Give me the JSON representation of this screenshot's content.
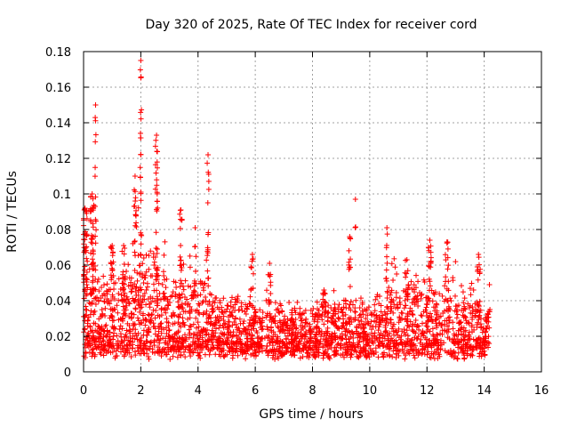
{
  "chart_data": {
    "type": "scatter",
    "title": "Day 320 of 2025, Rate Of TEC Index for receiver cord",
    "xlabel": "GPS time / hours",
    "ylabel": "ROTI / TECUs",
    "xlim": [
      0,
      16
    ],
    "ylim": [
      0,
      0.18
    ],
    "xticks": [
      0,
      2,
      4,
      6,
      8,
      10,
      12,
      14,
      16
    ],
    "xtick_labels": [
      "0",
      "2",
      "4",
      "6",
      "8",
      "10",
      "12",
      "14",
      "16"
    ],
    "yticks": [
      0,
      0.02,
      0.04,
      0.06,
      0.08,
      0.1,
      0.12,
      0.14,
      0.16,
      0.18
    ],
    "ytick_labels": [
      "0",
      "0.02",
      "0.04",
      "0.06",
      "0.08",
      "0.1",
      "0.12",
      "0.14",
      "0.16",
      "0.18"
    ],
    "grid": true,
    "marker": "+",
    "color": "#ff0000",
    "data_span_hours": [
      0,
      14.2
    ],
    "envelope": [
      {
        "t": 0.0,
        "base": 0.018,
        "spread": 0.02
      },
      {
        "t": 0.3,
        "base": 0.03,
        "spread": 0.04
      },
      {
        "t": 0.6,
        "base": 0.025,
        "spread": 0.03
      },
      {
        "t": 1.0,
        "base": 0.02,
        "spread": 0.025
      },
      {
        "t": 1.5,
        "base": 0.022,
        "spread": 0.03
      },
      {
        "t": 2.0,
        "base": 0.03,
        "spread": 0.04
      },
      {
        "t": 2.5,
        "base": 0.03,
        "spread": 0.04
      },
      {
        "t": 3.0,
        "base": 0.022,
        "spread": 0.03
      },
      {
        "t": 3.5,
        "base": 0.02,
        "spread": 0.028
      },
      {
        "t": 4.0,
        "base": 0.02,
        "spread": 0.028
      },
      {
        "t": 4.5,
        "base": 0.018,
        "spread": 0.022
      },
      {
        "t": 5.0,
        "base": 0.016,
        "spread": 0.018
      },
      {
        "t": 6.0,
        "base": 0.016,
        "spread": 0.018
      },
      {
        "t": 7.0,
        "base": 0.014,
        "spread": 0.014
      },
      {
        "t": 8.0,
        "base": 0.013,
        "spread": 0.012
      },
      {
        "t": 9.0,
        "base": 0.016,
        "spread": 0.02
      },
      {
        "t": 10.0,
        "base": 0.014,
        "spread": 0.018
      },
      {
        "t": 11.0,
        "base": 0.02,
        "spread": 0.028
      },
      {
        "t": 12.0,
        "base": 0.02,
        "spread": 0.026
      },
      {
        "t": 13.0,
        "base": 0.018,
        "spread": 0.024
      },
      {
        "t": 14.2,
        "base": 0.016,
        "spread": 0.02
      }
    ],
    "spikes": [
      {
        "t": 0.05,
        "peak": 0.092,
        "width": 0.15,
        "count": 40
      },
      {
        "t": 0.3,
        "peak": 0.1,
        "width": 0.12,
        "count": 40
      },
      {
        "t": 0.42,
        "peak": 0.15,
        "width": 0.04,
        "count": 14
      },
      {
        "t": 1.0,
        "peak": 0.071,
        "width": 0.12,
        "count": 20
      },
      {
        "t": 1.4,
        "peak": 0.071,
        "width": 0.12,
        "count": 16
      },
      {
        "t": 1.8,
        "peak": 0.11,
        "width": 0.08,
        "count": 24
      },
      {
        "t": 2.0,
        "peak": 0.175,
        "width": 0.05,
        "count": 26
      },
      {
        "t": 2.55,
        "peak": 0.133,
        "width": 0.08,
        "count": 30
      },
      {
        "t": 3.4,
        "peak": 0.091,
        "width": 0.08,
        "count": 20
      },
      {
        "t": 3.9,
        "peak": 0.081,
        "width": 0.06,
        "count": 10
      },
      {
        "t": 4.35,
        "peak": 0.122,
        "width": 0.06,
        "count": 16
      },
      {
        "t": 5.9,
        "peak": 0.066,
        "width": 0.15,
        "count": 12
      },
      {
        "t": 6.5,
        "peak": 0.061,
        "width": 0.1,
        "count": 10
      },
      {
        "t": 8.4,
        "peak": 0.046,
        "width": 0.15,
        "count": 12
      },
      {
        "t": 9.3,
        "peak": 0.076,
        "width": 0.06,
        "count": 14
      },
      {
        "t": 9.5,
        "peak": 0.097,
        "width": 0.02,
        "count": 2
      },
      {
        "t": 10.6,
        "peak": 0.081,
        "width": 0.06,
        "count": 12
      },
      {
        "t": 11.3,
        "peak": 0.063,
        "width": 0.15,
        "count": 16
      },
      {
        "t": 12.1,
        "peak": 0.074,
        "width": 0.1,
        "count": 14
      },
      {
        "t": 12.7,
        "peak": 0.073,
        "width": 0.12,
        "count": 14
      },
      {
        "t": 13.8,
        "peak": 0.066,
        "width": 0.12,
        "count": 14
      }
    ]
  }
}
